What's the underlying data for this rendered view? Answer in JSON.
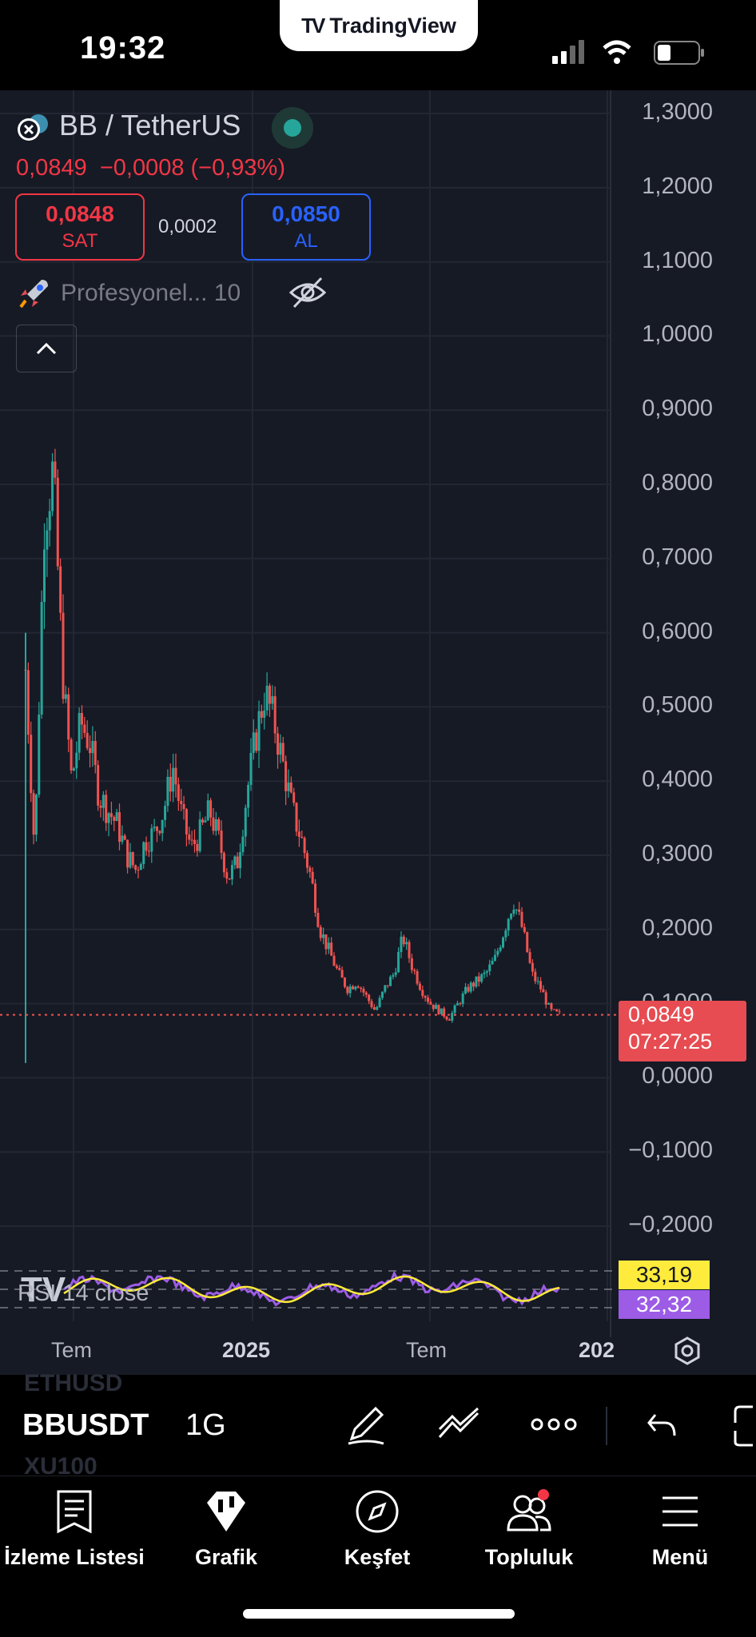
{
  "status_bar": {
    "time": "19:32",
    "brand": "TradingView"
  },
  "header": {
    "pair": "BB / TetherUS",
    "last_price": "0,0849",
    "change": "−0,0008 (−0,93%)",
    "sell": {
      "price": "0,0848",
      "label": "SAT"
    },
    "spread": "0,0002",
    "buy": {
      "price": "0,0850",
      "label": "AL"
    },
    "indicator": "Profesyonel... 10"
  },
  "colors": {
    "up": "#26a69a",
    "down": "#ef5350",
    "bg": "#161a25",
    "accent_blue": "#2962ff",
    "rsi_line": "#ffeb3b",
    "rsi_ma": "#9c5ce6"
  },
  "chart_data": {
    "type": "candlestick",
    "y_ticks": [
      "1,3000",
      "1,2000",
      "1,1000",
      "1,0000",
      "0,9000",
      "0,8000",
      "0,7000",
      "0,6000",
      "0,5000",
      "0,4000",
      "0,3000",
      "0,2000",
      "0,1000",
      "0,0000",
      "−0,1000",
      "−0,2000"
    ],
    "x_ticks": [
      "Tem",
      "2025",
      "Tem",
      "202"
    ],
    "ylim": [
      -0.2,
      1.3
    ],
    "current_price_label": "0,0849",
    "countdown": "07:27:25",
    "price_series": [
      0.55,
      0.3,
      0.75,
      0.82,
      0.55,
      0.4,
      0.48,
      0.45,
      0.38,
      0.36,
      0.34,
      0.3,
      0.28,
      0.32,
      0.33,
      0.36,
      0.42,
      0.35,
      0.31,
      0.33,
      0.36,
      0.32,
      0.27,
      0.29,
      0.38,
      0.46,
      0.52,
      0.48,
      0.42,
      0.36,
      0.32,
      0.27,
      0.2,
      0.17,
      0.14,
      0.12,
      0.13,
      0.11,
      0.09,
      0.12,
      0.14,
      0.19,
      0.15,
      0.12,
      0.1,
      0.09,
      0.08,
      0.1,
      0.12,
      0.13,
      0.14,
      0.16,
      0.2,
      0.24,
      0.2,
      0.14,
      0.12,
      0.09,
      0.085
    ],
    "rsi": {
      "label": "RSI 14 close",
      "value": "32,32",
      "ma_value": "33,19"
    }
  },
  "toolbar": {
    "symbol": "BBUSDT",
    "interval": "1G",
    "ghost_top": "ETHUSD",
    "ghost_bottom": "XU100"
  },
  "nav": [
    {
      "label": "İzleme Listesi",
      "icon": "watchlist-icon"
    },
    {
      "label": "Grafik",
      "icon": "chart-icon"
    },
    {
      "label": "Keşfet",
      "icon": "compass-icon"
    },
    {
      "label": "Topluluk",
      "icon": "community-icon"
    },
    {
      "label": "Menü",
      "icon": "menu-icon"
    }
  ]
}
